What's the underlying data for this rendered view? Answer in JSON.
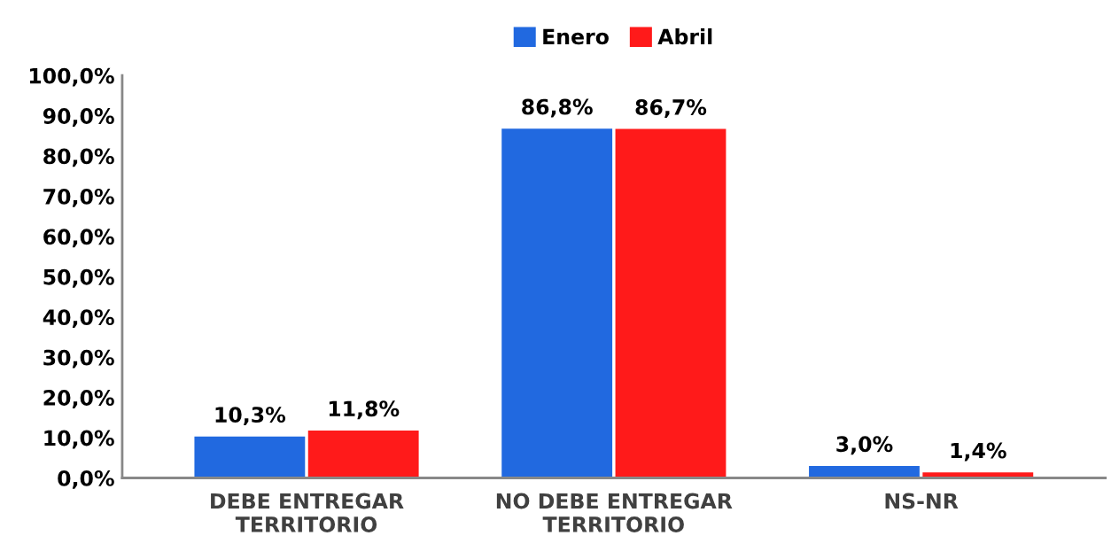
{
  "chart_data": {
    "type": "bar",
    "categories": [
      "DEBE ENTREGAR\nTERRITORIO",
      "NO DEBE ENTREGAR\nTERRITORIO",
      "NS-NR"
    ],
    "series": [
      {
        "name": "Enero",
        "color": "#2169e0",
        "values": [
          10.3,
          86.8,
          3.0
        ],
        "value_labels": [
          "10,3%",
          "86,8%",
          "3,0%"
        ]
      },
      {
        "name": "Abril",
        "color": "#ff1a1a",
        "values": [
          11.8,
          86.7,
          1.4
        ],
        "value_labels": [
          "11,8%",
          "86,7%",
          "1,4%"
        ]
      }
    ],
    "ylim": [
      0,
      100
    ],
    "yticks": [
      {
        "value": 0,
        "label": "0,0%"
      },
      {
        "value": 10,
        "label": "10,0%"
      },
      {
        "value": 20,
        "label": "20,0%"
      },
      {
        "value": 30,
        "label": "30,0%"
      },
      {
        "value": 40,
        "label": "40,0%"
      },
      {
        "value": 50,
        "label": "50,0%"
      },
      {
        "value": 60,
        "label": "60,0%"
      },
      {
        "value": 70,
        "label": "70,0%"
      },
      {
        "value": 80,
        "label": "80,0%"
      },
      {
        "value": 90,
        "label": "90,0%"
      },
      {
        "value": 100,
        "label": "100,0%"
      }
    ],
    "grid": false,
    "legend": "top"
  }
}
